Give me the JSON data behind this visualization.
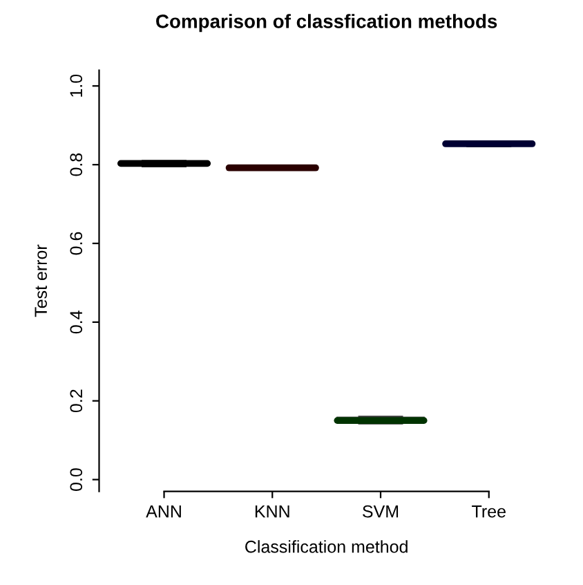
{
  "chart_data": {
    "type": "box",
    "title": "Comparison of classfication methods",
    "xlabel": "Classification method",
    "ylabel": "Test error",
    "categories": [
      "ANN",
      "KNN",
      "SVM",
      "Tree"
    ],
    "series": [
      {
        "color": "#000000",
        "boxes": [
          {
            "low": 0.795,
            "q1": 0.798,
            "median": 0.803,
            "q3": 0.808,
            "high": 0.81
          },
          null,
          null,
          null
        ]
      },
      {
        "color": "#2a0000",
        "boxes": [
          null,
          {
            "low": 0.787,
            "q1": 0.789,
            "median": 0.792,
            "q3": 0.795,
            "high": 0.797
          },
          null,
          null
        ]
      },
      {
        "color": "#003300",
        "boxes": [
          null,
          null,
          {
            "low": 0.142,
            "q1": 0.145,
            "median": 0.15,
            "q3": 0.158,
            "high": 0.16
          },
          null
        ]
      },
      {
        "color": "#000033",
        "boxes": [
          null,
          null,
          null,
          {
            "low": 0.846,
            "q1": 0.848,
            "median": 0.853,
            "q3": 0.857,
            "high": 0.858
          }
        ]
      }
    ],
    "ylim": [
      -0.03,
      1.04
    ],
    "yticks": [
      {
        "value": 0,
        "label": "0.0"
      },
      0.2,
      0.4,
      0.6,
      0.8,
      {
        "value": 1,
        "label": "1.0"
      }
    ],
    "grid": false
  }
}
